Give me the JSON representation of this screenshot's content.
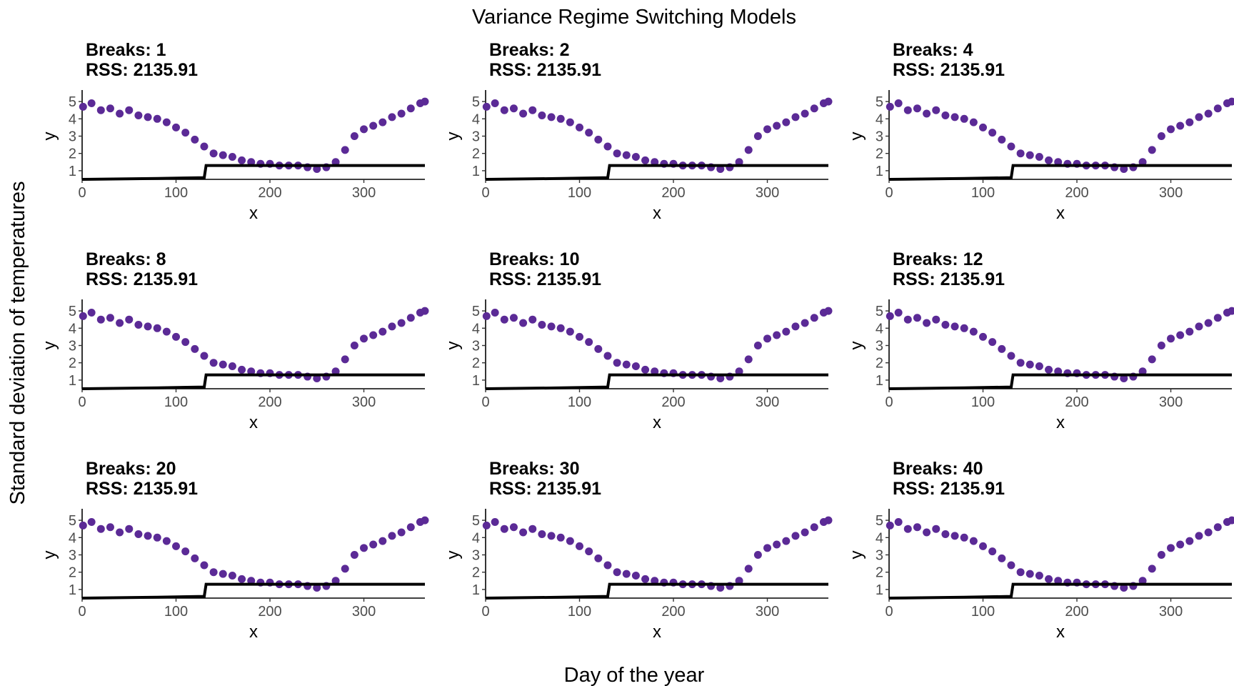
{
  "figure": {
    "title": "Variance Regime Switching Models",
    "xlabel": "Day of the year",
    "ylabel": "Standard deviation of temperatures"
  },
  "colors": {
    "points": "#5b2a96",
    "fit_line": "#000000",
    "axis": "#000000",
    "tick_text": "#4d4d4d",
    "background": "#ffffff"
  },
  "chart_data": [
    {
      "type": "scatter",
      "title": "Breaks: 1",
      "subtitle": "RSS: 2135.91",
      "xlabel": "x",
      "ylabel": "y",
      "xlim": [
        0,
        365
      ],
      "ylim": [
        0.5,
        5.5
      ],
      "xticks": [
        0,
        100,
        200,
        300
      ],
      "yticks": [
        1,
        2,
        3,
        4,
        5
      ],
      "grid": false,
      "series": [
        {
          "type": "scatter",
          "x": [
            1,
            10,
            20,
            30,
            40,
            50,
            60,
            70,
            80,
            90,
            100,
            110,
            120,
            130,
            140,
            150,
            160,
            170,
            180,
            190,
            200,
            210,
            220,
            230,
            240,
            250,
            260,
            270,
            280,
            290,
            300,
            310,
            320,
            330,
            340,
            350,
            360,
            365
          ],
          "y": [
            4.7,
            4.9,
            4.5,
            4.6,
            4.3,
            4.5,
            4.2,
            4.1,
            4.0,
            3.8,
            3.5,
            3.2,
            2.8,
            2.4,
            2.0,
            1.9,
            1.8,
            1.6,
            1.5,
            1.4,
            1.4,
            1.3,
            1.3,
            1.3,
            1.2,
            1.1,
            1.2,
            1.5,
            2.2,
            3.0,
            3.4,
            3.6,
            3.8,
            4.1,
            4.3,
            4.6,
            4.9,
            5.0
          ]
        },
        {
          "type": "step",
          "x": [
            0,
            80,
            130,
            132,
            365
          ],
          "y": [
            0.5,
            0.55,
            0.6,
            1.3,
            1.3
          ]
        }
      ]
    },
    {
      "type": "scatter",
      "title": "Breaks: 2",
      "subtitle": "RSS: 2135.91",
      "xlabel": "x",
      "ylabel": "y",
      "xlim": [
        0,
        365
      ],
      "ylim": [
        0.5,
        5.5
      ],
      "xticks": [
        0,
        100,
        200,
        300
      ],
      "yticks": [
        1,
        2,
        3,
        4,
        5
      ],
      "grid": false,
      "series": [
        {
          "type": "scatter",
          "x": [
            1,
            10,
            20,
            30,
            40,
            50,
            60,
            70,
            80,
            90,
            100,
            110,
            120,
            130,
            140,
            150,
            160,
            170,
            180,
            190,
            200,
            210,
            220,
            230,
            240,
            250,
            260,
            270,
            280,
            290,
            300,
            310,
            320,
            330,
            340,
            350,
            360,
            365
          ],
          "y": [
            4.7,
            4.9,
            4.5,
            4.6,
            4.3,
            4.5,
            4.2,
            4.1,
            4.0,
            3.8,
            3.5,
            3.2,
            2.8,
            2.4,
            2.0,
            1.9,
            1.8,
            1.6,
            1.5,
            1.4,
            1.4,
            1.3,
            1.3,
            1.3,
            1.2,
            1.1,
            1.2,
            1.5,
            2.2,
            3.0,
            3.4,
            3.6,
            3.8,
            4.1,
            4.3,
            4.6,
            4.9,
            5.0
          ]
        },
        {
          "type": "step",
          "x": [
            0,
            80,
            130,
            132,
            365
          ],
          "y": [
            0.5,
            0.55,
            0.6,
            1.3,
            1.3
          ]
        }
      ]
    },
    {
      "type": "scatter",
      "title": "Breaks: 4",
      "subtitle": "RSS: 2135.91",
      "xlabel": "x",
      "ylabel": "y",
      "xlim": [
        0,
        365
      ],
      "ylim": [
        0.5,
        5.5
      ],
      "xticks": [
        0,
        100,
        200,
        300
      ],
      "yticks": [
        1,
        2,
        3,
        4,
        5
      ],
      "grid": false,
      "series": [
        {
          "type": "scatter",
          "x": [
            1,
            10,
            20,
            30,
            40,
            50,
            60,
            70,
            80,
            90,
            100,
            110,
            120,
            130,
            140,
            150,
            160,
            170,
            180,
            190,
            200,
            210,
            220,
            230,
            240,
            250,
            260,
            270,
            280,
            290,
            300,
            310,
            320,
            330,
            340,
            350,
            360,
            365
          ],
          "y": [
            4.7,
            4.9,
            4.5,
            4.6,
            4.3,
            4.5,
            4.2,
            4.1,
            4.0,
            3.8,
            3.5,
            3.2,
            2.8,
            2.4,
            2.0,
            1.9,
            1.8,
            1.6,
            1.5,
            1.4,
            1.4,
            1.3,
            1.3,
            1.3,
            1.2,
            1.1,
            1.2,
            1.5,
            2.2,
            3.0,
            3.4,
            3.6,
            3.8,
            4.1,
            4.3,
            4.6,
            4.9,
            5.0
          ]
        },
        {
          "type": "step",
          "x": [
            0,
            80,
            130,
            132,
            365
          ],
          "y": [
            0.5,
            0.55,
            0.6,
            1.3,
            1.3
          ]
        }
      ]
    },
    {
      "type": "scatter",
      "title": "Breaks: 8",
      "subtitle": "RSS: 2135.91",
      "xlabel": "x",
      "ylabel": "y",
      "xlim": [
        0,
        365
      ],
      "ylim": [
        0.5,
        5.5
      ],
      "xticks": [
        0,
        100,
        200,
        300
      ],
      "yticks": [
        1,
        2,
        3,
        4,
        5
      ],
      "grid": false,
      "series": [
        {
          "type": "scatter",
          "x": [
            1,
            10,
            20,
            30,
            40,
            50,
            60,
            70,
            80,
            90,
            100,
            110,
            120,
            130,
            140,
            150,
            160,
            170,
            180,
            190,
            200,
            210,
            220,
            230,
            240,
            250,
            260,
            270,
            280,
            290,
            300,
            310,
            320,
            330,
            340,
            350,
            360,
            365
          ],
          "y": [
            4.7,
            4.9,
            4.5,
            4.6,
            4.3,
            4.5,
            4.2,
            4.1,
            4.0,
            3.8,
            3.5,
            3.2,
            2.8,
            2.4,
            2.0,
            1.9,
            1.8,
            1.6,
            1.5,
            1.4,
            1.4,
            1.3,
            1.3,
            1.3,
            1.2,
            1.1,
            1.2,
            1.5,
            2.2,
            3.0,
            3.4,
            3.6,
            3.8,
            4.1,
            4.3,
            4.6,
            4.9,
            5.0
          ]
        },
        {
          "type": "step",
          "x": [
            0,
            80,
            130,
            132,
            365
          ],
          "y": [
            0.5,
            0.55,
            0.6,
            1.3,
            1.3
          ]
        }
      ]
    },
    {
      "type": "scatter",
      "title": "Breaks: 10",
      "subtitle": "RSS: 2135.91",
      "xlabel": "x",
      "ylabel": "y",
      "xlim": [
        0,
        365
      ],
      "ylim": [
        0.5,
        5.5
      ],
      "xticks": [
        0,
        100,
        200,
        300
      ],
      "yticks": [
        1,
        2,
        3,
        4,
        5
      ],
      "grid": false,
      "series": [
        {
          "type": "scatter",
          "x": [
            1,
            10,
            20,
            30,
            40,
            50,
            60,
            70,
            80,
            90,
            100,
            110,
            120,
            130,
            140,
            150,
            160,
            170,
            180,
            190,
            200,
            210,
            220,
            230,
            240,
            250,
            260,
            270,
            280,
            290,
            300,
            310,
            320,
            330,
            340,
            350,
            360,
            365
          ],
          "y": [
            4.7,
            4.9,
            4.5,
            4.6,
            4.3,
            4.5,
            4.2,
            4.1,
            4.0,
            3.8,
            3.5,
            3.2,
            2.8,
            2.4,
            2.0,
            1.9,
            1.8,
            1.6,
            1.5,
            1.4,
            1.4,
            1.3,
            1.3,
            1.3,
            1.2,
            1.1,
            1.2,
            1.5,
            2.2,
            3.0,
            3.4,
            3.6,
            3.8,
            4.1,
            4.3,
            4.6,
            4.9,
            5.0
          ]
        },
        {
          "type": "step",
          "x": [
            0,
            80,
            130,
            132,
            365
          ],
          "y": [
            0.5,
            0.55,
            0.6,
            1.3,
            1.3
          ]
        }
      ]
    },
    {
      "type": "scatter",
      "title": "Breaks: 12",
      "subtitle": "RSS: 2135.91",
      "xlabel": "x",
      "ylabel": "y",
      "xlim": [
        0,
        365
      ],
      "ylim": [
        0.5,
        5.5
      ],
      "xticks": [
        0,
        100,
        200,
        300
      ],
      "yticks": [
        1,
        2,
        3,
        4,
        5
      ],
      "grid": false,
      "series": [
        {
          "type": "scatter",
          "x": [
            1,
            10,
            20,
            30,
            40,
            50,
            60,
            70,
            80,
            90,
            100,
            110,
            120,
            130,
            140,
            150,
            160,
            170,
            180,
            190,
            200,
            210,
            220,
            230,
            240,
            250,
            260,
            270,
            280,
            290,
            300,
            310,
            320,
            330,
            340,
            350,
            360,
            365
          ],
          "y": [
            4.7,
            4.9,
            4.5,
            4.6,
            4.3,
            4.5,
            4.2,
            4.1,
            4.0,
            3.8,
            3.5,
            3.2,
            2.8,
            2.4,
            2.0,
            1.9,
            1.8,
            1.6,
            1.5,
            1.4,
            1.4,
            1.3,
            1.3,
            1.3,
            1.2,
            1.1,
            1.2,
            1.5,
            2.2,
            3.0,
            3.4,
            3.6,
            3.8,
            4.1,
            4.3,
            4.6,
            4.9,
            5.0
          ]
        },
        {
          "type": "step",
          "x": [
            0,
            80,
            130,
            132,
            365
          ],
          "y": [
            0.5,
            0.55,
            0.6,
            1.3,
            1.3
          ]
        }
      ]
    },
    {
      "type": "scatter",
      "title": "Breaks: 20",
      "subtitle": "RSS: 2135.91",
      "xlabel": "x",
      "ylabel": "y",
      "xlim": [
        0,
        365
      ],
      "ylim": [
        0.5,
        5.5
      ],
      "xticks": [
        0,
        100,
        200,
        300
      ],
      "yticks": [
        1,
        2,
        3,
        4,
        5
      ],
      "grid": false,
      "series": [
        {
          "type": "scatter",
          "x": [
            1,
            10,
            20,
            30,
            40,
            50,
            60,
            70,
            80,
            90,
            100,
            110,
            120,
            130,
            140,
            150,
            160,
            170,
            180,
            190,
            200,
            210,
            220,
            230,
            240,
            250,
            260,
            270,
            280,
            290,
            300,
            310,
            320,
            330,
            340,
            350,
            360,
            365
          ],
          "y": [
            4.7,
            4.9,
            4.5,
            4.6,
            4.3,
            4.5,
            4.2,
            4.1,
            4.0,
            3.8,
            3.5,
            3.2,
            2.8,
            2.4,
            2.0,
            1.9,
            1.8,
            1.6,
            1.5,
            1.4,
            1.4,
            1.3,
            1.3,
            1.3,
            1.2,
            1.1,
            1.2,
            1.5,
            2.2,
            3.0,
            3.4,
            3.6,
            3.8,
            4.1,
            4.3,
            4.6,
            4.9,
            5.0
          ]
        },
        {
          "type": "step",
          "x": [
            0,
            80,
            130,
            132,
            365
          ],
          "y": [
            0.5,
            0.55,
            0.6,
            1.3,
            1.3
          ]
        }
      ]
    },
    {
      "type": "scatter",
      "title": "Breaks: 30",
      "subtitle": "RSS: 2135.91",
      "xlabel": "x",
      "ylabel": "y",
      "xlim": [
        0,
        365
      ],
      "ylim": [
        0.5,
        5.5
      ],
      "xticks": [
        0,
        100,
        200,
        300
      ],
      "yticks": [
        1,
        2,
        3,
        4,
        5
      ],
      "grid": false,
      "series": [
        {
          "type": "scatter",
          "x": [
            1,
            10,
            20,
            30,
            40,
            50,
            60,
            70,
            80,
            90,
            100,
            110,
            120,
            130,
            140,
            150,
            160,
            170,
            180,
            190,
            200,
            210,
            220,
            230,
            240,
            250,
            260,
            270,
            280,
            290,
            300,
            310,
            320,
            330,
            340,
            350,
            360,
            365
          ],
          "y": [
            4.7,
            4.9,
            4.5,
            4.6,
            4.3,
            4.5,
            4.2,
            4.1,
            4.0,
            3.8,
            3.5,
            3.2,
            2.8,
            2.4,
            2.0,
            1.9,
            1.8,
            1.6,
            1.5,
            1.4,
            1.4,
            1.3,
            1.3,
            1.3,
            1.2,
            1.1,
            1.2,
            1.5,
            2.2,
            3.0,
            3.4,
            3.6,
            3.8,
            4.1,
            4.3,
            4.6,
            4.9,
            5.0
          ]
        },
        {
          "type": "step",
          "x": [
            0,
            80,
            130,
            132,
            365
          ],
          "y": [
            0.5,
            0.55,
            0.6,
            1.3,
            1.3
          ]
        }
      ]
    },
    {
      "type": "scatter",
      "title": "Breaks: 40",
      "subtitle": "RSS: 2135.91",
      "xlabel": "x",
      "ylabel": "y",
      "xlim": [
        0,
        365
      ],
      "ylim": [
        0.5,
        5.5
      ],
      "xticks": [
        0,
        100,
        200,
        300
      ],
      "yticks": [
        1,
        2,
        3,
        4,
        5
      ],
      "grid": false,
      "series": [
        {
          "type": "scatter",
          "x": [
            1,
            10,
            20,
            30,
            40,
            50,
            60,
            70,
            80,
            90,
            100,
            110,
            120,
            130,
            140,
            150,
            160,
            170,
            180,
            190,
            200,
            210,
            220,
            230,
            240,
            250,
            260,
            270,
            280,
            290,
            300,
            310,
            320,
            330,
            340,
            350,
            360,
            365
          ],
          "y": [
            4.7,
            4.9,
            4.5,
            4.6,
            4.3,
            4.5,
            4.2,
            4.1,
            4.0,
            3.8,
            3.5,
            3.2,
            2.8,
            2.4,
            2.0,
            1.9,
            1.8,
            1.6,
            1.5,
            1.4,
            1.4,
            1.3,
            1.3,
            1.3,
            1.2,
            1.1,
            1.2,
            1.5,
            2.2,
            3.0,
            3.4,
            3.6,
            3.8,
            4.1,
            4.3,
            4.6,
            4.9,
            5.0
          ]
        },
        {
          "type": "step",
          "x": [
            0,
            80,
            130,
            132,
            365
          ],
          "y": [
            0.5,
            0.55,
            0.6,
            1.3,
            1.3
          ]
        }
      ]
    }
  ]
}
